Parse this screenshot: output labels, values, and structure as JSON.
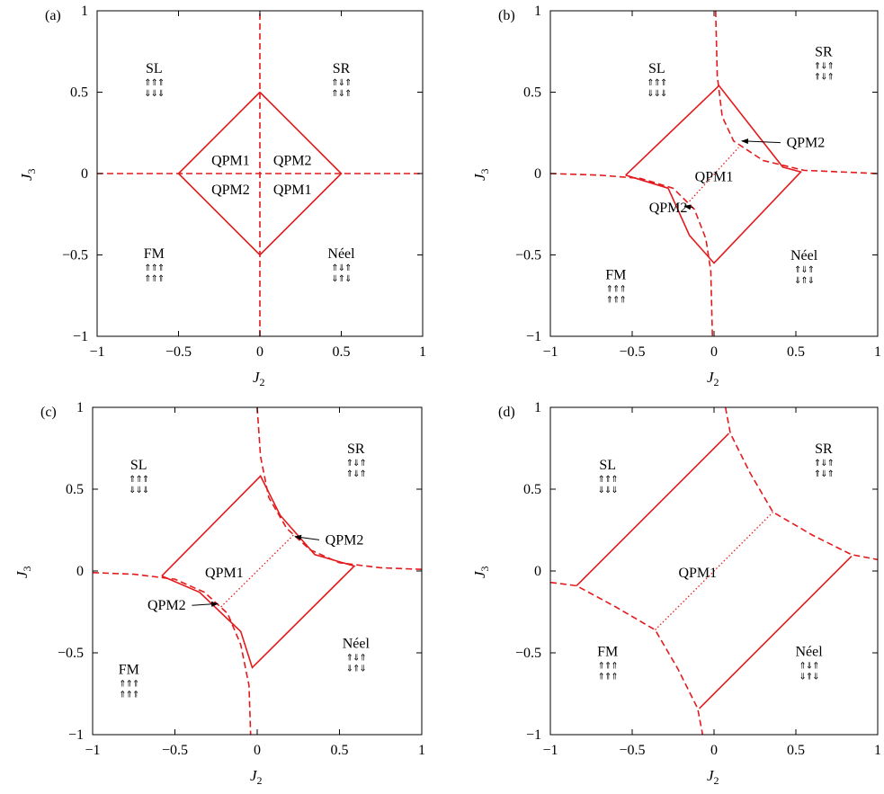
{
  "colors": {
    "boundary": "#e31a1c",
    "frame": "#000000"
  },
  "chart_data": [
    {
      "type": "line",
      "panel": "(a)",
      "xlabel": "J2",
      "ylabel": "J3",
      "xlim": [
        -1,
        1
      ],
      "ylim": [
        -1,
        1
      ],
      "xticks": [
        "−1",
        "−0.5",
        "0",
        "0.5",
        "1"
      ],
      "yticks": [
        "−1",
        "−0.5",
        "0",
        "0.5",
        "1"
      ],
      "series": [
        {
          "style": "solid",
          "points": [
            [
              0,
              0.5
            ],
            [
              0.5,
              0
            ],
            [
              0,
              -0.5
            ],
            [
              -0.5,
              0
            ],
            [
              0,
              0.5
            ]
          ]
        },
        {
          "style": "dashed",
          "points": [
            [
              0,
              -1
            ],
            [
              0,
              1
            ]
          ]
        },
        {
          "style": "dashed",
          "points": [
            [
              -1,
              0
            ],
            [
              1,
              0
            ]
          ]
        }
      ],
      "regions": [
        {
          "name": "SL",
          "spins": [
            "⇑⇑⇑",
            "⇓⇓⇓"
          ],
          "at": [
            -0.65,
            0.62
          ]
        },
        {
          "name": "SR",
          "spins": [
            "⇑⇓⇑",
            "⇑⇓⇑"
          ],
          "at": [
            0.5,
            0.62
          ]
        },
        {
          "name": "FM",
          "spins": [
            "⇑⇑⇑",
            "⇑⇑⇑"
          ],
          "at": [
            -0.65,
            -0.52
          ]
        },
        {
          "name": "Néel",
          "spins": [
            "⇑⇓⇑",
            "⇓⇑⇓"
          ],
          "at": [
            0.5,
            -0.52
          ]
        }
      ],
      "labels": [
        {
          "text": "QPM1",
          "at": [
            -0.18,
            0.08
          ]
        },
        {
          "text": "QPM2",
          "at": [
            0.2,
            0.08
          ]
        },
        {
          "text": "QPM2",
          "at": [
            -0.18,
            -0.1
          ]
        },
        {
          "text": "QPM1",
          "at": [
            0.2,
            -0.1
          ]
        }
      ]
    },
    {
      "type": "line",
      "panel": "(b)",
      "xlabel": "J2",
      "ylabel": "J3",
      "xlim": [
        -1,
        1
      ],
      "ylim": [
        -1,
        1
      ],
      "xticks": [
        "−1",
        "−0.5",
        "0",
        "0.5",
        "1"
      ],
      "yticks": [
        "−1",
        "−0.5",
        "0",
        "0.5",
        "1"
      ],
      "series": [
        {
          "style": "solid",
          "points": [
            [
              -0.54,
              -0.01
            ],
            [
              0.03,
              0.54
            ],
            [
              0.42,
              0.04
            ],
            [
              0.53,
              0.01
            ],
            [
              0.0,
              -0.55
            ],
            [
              -0.15,
              -0.38
            ],
            [
              -0.28,
              -0.09
            ]
          ]
        },
        {
          "style": "solid",
          "points": [
            [
              -0.54,
              -0.01
            ],
            [
              -0.28,
              -0.09
            ]
          ]
        },
        {
          "style": "dashed",
          "points": [
            [
              -1,
              0.0
            ],
            [
              -0.7,
              -0.01
            ],
            [
              -0.45,
              -0.03
            ],
            [
              -0.25,
              -0.09
            ],
            [
              -0.12,
              -0.22
            ],
            [
              -0.05,
              -0.4
            ],
            [
              -0.02,
              -0.6
            ],
            [
              -0.01,
              -1
            ]
          ]
        },
        {
          "style": "dashed",
          "points": [
            [
              0.01,
              1
            ],
            [
              0.02,
              0.6
            ],
            [
              0.05,
              0.35
            ],
            [
              0.12,
              0.2
            ],
            [
              0.3,
              0.08
            ],
            [
              0.55,
              0.02
            ],
            [
              1,
              0.0
            ]
          ]
        },
        {
          "style": "dotted",
          "points": [
            [
              -0.15,
              -0.17
            ],
            [
              0.15,
              0.16
            ]
          ]
        }
      ],
      "regions": [
        {
          "name": "SL",
          "spins": [
            "⇑⇑⇑",
            "⇓⇓⇓"
          ],
          "at": [
            -0.35,
            0.62
          ]
        },
        {
          "name": "SR",
          "spins": [
            "⇑⇓⇑",
            "⇑⇓⇑"
          ],
          "at": [
            0.67,
            0.72
          ]
        },
        {
          "name": "FM",
          "spins": [
            "⇑⇑⇑",
            "⇑⇑⇑"
          ],
          "at": [
            -0.6,
            -0.65
          ]
        },
        {
          "name": "Néel",
          "spins": [
            "⇑⇓⇑",
            "⇓⇑⇓"
          ],
          "at": [
            0.55,
            -0.53
          ]
        }
      ],
      "labels": [
        {
          "text": "QPM1",
          "at": [
            0.0,
            -0.02
          ]
        },
        {
          "text": "QPM2",
          "at": [
            0.56,
            0.19
          ],
          "arrow_to": [
            0.17,
            0.2
          ]
        },
        {
          "text": "QPM2",
          "at": [
            -0.28,
            -0.21
          ],
          "arrow_to": [
            -0.18,
            -0.2
          ]
        }
      ]
    },
    {
      "type": "line",
      "panel": "(c)",
      "xlabel": "J2",
      "ylabel": "J3",
      "xlim": [
        -1,
        1
      ],
      "ylim": [
        -1,
        1
      ],
      "xticks": [
        "−1",
        "−0.5",
        "0",
        "0.5",
        "1"
      ],
      "yticks": [
        "−1",
        "−0.5",
        "0",
        "0.5",
        "1"
      ],
      "series": [
        {
          "style": "solid",
          "points": [
            [
              -0.58,
              -0.03
            ],
            [
              0.02,
              0.58
            ],
            [
              0.14,
              0.34
            ],
            [
              0.35,
              0.1
            ],
            [
              0.59,
              0.03
            ],
            [
              -0.03,
              -0.59
            ],
            [
              -0.1,
              -0.37
            ],
            [
              -0.35,
              -0.13
            ],
            [
              -0.58,
              -0.03
            ]
          ]
        },
        {
          "style": "dashed",
          "points": [
            [
              -1,
              -0.01
            ],
            [
              -0.75,
              -0.02
            ],
            [
              -0.5,
              -0.05
            ],
            [
              -0.32,
              -0.13
            ],
            [
              -0.18,
              -0.26
            ],
            [
              -0.1,
              -0.45
            ],
            [
              -0.05,
              -0.7
            ],
            [
              -0.04,
              -1
            ]
          ]
        },
        {
          "style": "dashed",
          "points": [
            [
              0.0,
              1
            ],
            [
              0.02,
              0.7
            ],
            [
              0.07,
              0.45
            ],
            [
              0.18,
              0.26
            ],
            [
              0.32,
              0.13
            ],
            [
              0.5,
              0.05
            ],
            [
              0.75,
              0.02
            ],
            [
              1,
              0.01
            ]
          ]
        },
        {
          "style": "dotted",
          "points": [
            [
              -0.22,
              -0.22
            ],
            [
              0.22,
              0.22
            ]
          ]
        }
      ],
      "regions": [
        {
          "name": "SL",
          "spins": [
            "⇑⇑⇑",
            "⇓⇓⇓"
          ],
          "at": [
            -0.72,
            0.62
          ]
        },
        {
          "name": "SR",
          "spins": [
            "⇑⇓⇑",
            "⇑⇓⇑"
          ],
          "at": [
            0.6,
            0.72
          ]
        },
        {
          "name": "FM",
          "spins": [
            "⇑⇑⇑",
            "⇑⇑⇑"
          ],
          "at": [
            -0.78,
            -0.63
          ]
        },
        {
          "name": "Néel",
          "spins": [
            "⇑⇓⇑",
            "⇓⇑⇓"
          ],
          "at": [
            0.6,
            -0.47
          ]
        }
      ],
      "labels": [
        {
          "text": "QPM1",
          "at": [
            -0.2,
            -0.01
          ]
        },
        {
          "text": "QPM2",
          "at": [
            0.53,
            0.19
          ],
          "arrow_to": [
            0.23,
            0.21
          ]
        },
        {
          "text": "QPM2",
          "at": [
            -0.55,
            -0.21
          ],
          "arrow_to": [
            -0.24,
            -0.2
          ]
        }
      ]
    },
    {
      "type": "line",
      "panel": "(d)",
      "xlabel": "J2",
      "ylabel": "J3",
      "xlim": [
        -1,
        1
      ],
      "ylim": [
        -1,
        1
      ],
      "xticks": [
        "−1",
        "−0.5",
        "0",
        "0.5",
        "1"
      ],
      "yticks": [
        "−1",
        "−0.5",
        "0",
        "0.5",
        "1"
      ],
      "series": [
        {
          "style": "solid",
          "points": [
            [
              -0.84,
              -0.09
            ],
            [
              0.09,
              0.84
            ]
          ]
        },
        {
          "style": "solid",
          "points": [
            [
              -0.09,
              -0.84
            ],
            [
              0.84,
              0.09
            ]
          ]
        },
        {
          "style": "dashed",
          "points": [
            [
              -1,
              -0.07
            ],
            [
              -0.84,
              -0.09
            ],
            [
              -0.6,
              -0.22
            ],
            [
              -0.36,
              -0.36
            ],
            [
              -0.22,
              -0.6
            ],
            [
              -0.1,
              -0.84
            ],
            [
              -0.07,
              -1
            ]
          ]
        },
        {
          "style": "dashed",
          "points": [
            [
              0.07,
              1
            ],
            [
              0.1,
              0.84
            ],
            [
              0.22,
              0.6
            ],
            [
              0.36,
              0.36
            ],
            [
              0.6,
              0.22
            ],
            [
              0.84,
              0.1
            ],
            [
              1,
              0.07
            ]
          ]
        },
        {
          "style": "dotted",
          "points": [
            [
              -0.36,
              -0.36
            ],
            [
              0.36,
              0.36
            ]
          ]
        }
      ],
      "regions": [
        {
          "name": "SL",
          "spins": [
            "⇑⇑⇑",
            "⇓⇓⇓"
          ],
          "at": [
            -0.65,
            0.62
          ]
        },
        {
          "name": "SR",
          "spins": [
            "⇑⇓⇑",
            "⇑⇓⇑"
          ],
          "at": [
            0.67,
            0.72
          ]
        },
        {
          "name": "FM",
          "spins": [
            "⇑⇑⇑",
            "⇑⇑⇑"
          ],
          "at": [
            -0.65,
            -0.52
          ]
        },
        {
          "name": "Néel",
          "spins": [
            "⇑⇓⇑",
            "⇓⇑⇓"
          ],
          "at": [
            0.58,
            -0.52
          ]
        }
      ],
      "labels": [
        {
          "text": "QPM1",
          "at": [
            -0.1,
            -0.01
          ]
        }
      ]
    }
  ]
}
